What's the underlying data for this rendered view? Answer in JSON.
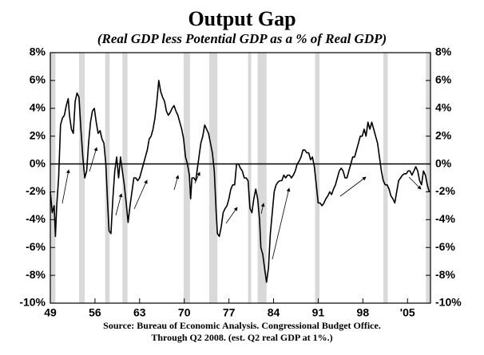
{
  "chart_data": {
    "type": "line",
    "title": "Output Gap",
    "subtitle": "(Real GDP less Potential GDP as a % of Real GDP)",
    "source": [
      "Source:  Bureau of Economic Analysis. Congressional Budget Office.",
      "Through  Q2 2008. (est. Q2 real GDP at 1%.)"
    ],
    "xlim": [
      1949,
      2008.6
    ],
    "xticks": [
      {
        "value": 1949,
        "label": "49"
      },
      {
        "value": 1956,
        "label": "56"
      },
      {
        "value": 1963,
        "label": "63"
      },
      {
        "value": 1970,
        "label": "70"
      },
      {
        "value": 1977,
        "label": "77"
      },
      {
        "value": 1984,
        "label": "84"
      },
      {
        "value": 1991,
        "label": "91"
      },
      {
        "value": 1998,
        "label": "98"
      },
      {
        "value": 2005,
        "label": "'05"
      }
    ],
    "ylim": [
      -10,
      8
    ],
    "yticks": [
      {
        "value": -10,
        "label": "-10%"
      },
      {
        "value": -8,
        "label": "-8%"
      },
      {
        "value": -6,
        "label": "-6%"
      },
      {
        "value": -4,
        "label": "-4%"
      },
      {
        "value": -2,
        "label": "-2%"
      },
      {
        "value": 0,
        "label": "0%"
      },
      {
        "value": 2,
        "label": "2%"
      },
      {
        "value": 4,
        "label": "4%"
      },
      {
        "value": 6,
        "label": "6%"
      },
      {
        "value": 8,
        "label": "8%"
      }
    ],
    "recession_color": "#d9d9d9",
    "recessions": [
      [
        1949,
        1949.8
      ],
      [
        1953.5,
        1954.4
      ],
      [
        1957.6,
        1958.3
      ],
      [
        1960.3,
        1961.1
      ],
      [
        1969.9,
        1970.9
      ],
      [
        1973.9,
        1975.2
      ],
      [
        1980.0,
        1980.5
      ],
      [
        1981.5,
        1982.9
      ],
      [
        1990.5,
        1991.2
      ],
      [
        2001.2,
        2001.9
      ],
      [
        2007.9,
        2008.6
      ]
    ],
    "series": [
      {
        "name": "Output Gap",
        "color": "#000000",
        "x": [
          1949.0,
          1949.3,
          1949.6,
          1949.8,
          1950.0,
          1950.3,
          1950.6,
          1950.9,
          1951.2,
          1951.5,
          1951.8,
          1952.0,
          1952.3,
          1952.6,
          1952.9,
          1953.2,
          1953.5,
          1953.8,
          1954.1,
          1954.4,
          1954.7,
          1955.0,
          1955.3,
          1955.6,
          1955.9,
          1956.2,
          1956.5,
          1956.8,
          1957.1,
          1957.4,
          1957.7,
          1958.0,
          1958.2,
          1958.5,
          1958.8,
          1959.1,
          1959.4,
          1959.7,
          1960.0,
          1960.3,
          1960.6,
          1960.9,
          1961.2,
          1961.5,
          1961.8,
          1962.1,
          1962.4,
          1962.7,
          1963.0,
          1963.3,
          1963.6,
          1963.9,
          1964.2,
          1964.5,
          1964.8,
          1965.1,
          1965.4,
          1965.7,
          1966.0,
          1966.3,
          1966.6,
          1966.9,
          1967.2,
          1967.5,
          1967.8,
          1968.1,
          1968.4,
          1968.7,
          1969.0,
          1969.3,
          1969.6,
          1969.9,
          1970.2,
          1970.5,
          1970.8,
          1971.0,
          1971.2,
          1971.5,
          1971.8,
          1972.0,
          1972.3,
          1972.6,
          1972.9,
          1973.2,
          1973.5,
          1973.8,
          1974.1,
          1974.4,
          1974.7,
          1975.0,
          1975.2,
          1975.5,
          1975.8,
          1976.1,
          1976.4,
          1976.7,
          1977.0,
          1977.3,
          1977.6,
          1977.9,
          1978.2,
          1978.5,
          1978.8,
          1979.1,
          1979.4,
          1979.7,
          1980.0,
          1980.3,
          1980.6,
          1980.9,
          1981.2,
          1981.5,
          1981.8,
          1982.0,
          1982.3,
          1982.6,
          1982.9,
          1983.2,
          1983.5,
          1983.8,
          1984.1,
          1984.4,
          1984.7,
          1985.0,
          1985.3,
          1985.6,
          1985.9,
          1986.2,
          1986.5,
          1986.8,
          1987.1,
          1987.4,
          1987.7,
          1988.0,
          1988.3,
          1988.6,
          1988.9,
          1989.2,
          1989.5,
          1989.8,
          1990.1,
          1990.4,
          1990.7,
          1991.0,
          1991.3,
          1991.6,
          1991.9,
          1992.2,
          1992.5,
          1992.8,
          1993.1,
          1993.4,
          1993.7,
          1994.0,
          1994.3,
          1994.6,
          1994.9,
          1995.2,
          1995.5,
          1995.8,
          1996.1,
          1996.4,
          1996.7,
          1997.0,
          1997.3,
          1997.6,
          1997.9,
          1998.2,
          1998.5,
          1998.8,
          1999.1,
          1999.4,
          1999.7,
          2000.0,
          2000.3,
          2000.6,
          2000.9,
          2001.2,
          2001.5,
          2001.8,
          2002.1,
          2002.4,
          2002.7,
          2003.0,
          2003.3,
          2003.6,
          2003.9,
          2004.2,
          2004.5,
          2004.8,
          2005.1,
          2005.4,
          2005.7,
          2006.0,
          2006.3,
          2006.6,
          2006.9,
          2007.2,
          2007.5,
          2007.8,
          2008.1,
          2008.4
        ],
        "values": [
          -2,
          -3.5,
          -3,
          -5.2,
          -3,
          -1,
          2.8,
          3.3,
          3.5,
          4.2,
          4.7,
          3.5,
          2.5,
          2.2,
          4.5,
          5.1,
          4.8,
          2.5,
          0.5,
          -1,
          -0.5,
          1.5,
          3,
          3.8,
          4,
          3,
          2.2,
          2.4,
          1.8,
          1.5,
          0,
          -3,
          -4.8,
          -5,
          -2.5,
          -0.5,
          0.5,
          -1,
          0.5,
          -0.5,
          -1.5,
          -2.8,
          -4.2,
          -3,
          -2,
          -1,
          -1,
          -1.2,
          -1,
          -0.5,
          0,
          0.5,
          1,
          1.8,
          2,
          2.5,
          3.3,
          4.5,
          6,
          5.2,
          4.8,
          4.5,
          3.8,
          3.5,
          3.7,
          4,
          4.2,
          3.8,
          3.5,
          3,
          2.5,
          1.8,
          0.5,
          0,
          -0.8,
          -2.5,
          -1,
          -1,
          -1.2,
          -0.5,
          0.5,
          1.5,
          2,
          2.8,
          2.5,
          2.2,
          1.5,
          0.8,
          -0.5,
          -3.5,
          -5,
          -5.2,
          -4.5,
          -3.5,
          -3.2,
          -3,
          -2.5,
          -1.8,
          -1.5,
          -1.5,
          0,
          0,
          -0.3,
          -0.5,
          -1,
          -1,
          -1.2,
          -3.2,
          -3.5,
          -2.5,
          -1.8,
          -2.5,
          -4,
          -6,
          -6.5,
          -7.5,
          -8.5,
          -7.5,
          -5,
          -3.5,
          -2,
          -1.5,
          -1.3,
          -1.2,
          -1.2,
          -0.8,
          -1,
          -0.8,
          -0.8,
          -1,
          -0.8,
          -0.5,
          0,
          0.2,
          0.5,
          1,
          1,
          0.8,
          0.8,
          0.3,
          0.5,
          -0.2,
          -1.5,
          -2.8,
          -2.8,
          -3,
          -2.8,
          -2.5,
          -2.3,
          -2,
          -2.2,
          -1.8,
          -1.5,
          -1,
          -0.5,
          -0.3,
          -0.5,
          -1,
          -1,
          -0.5,
          0,
          0.5,
          0.5,
          1,
          1.5,
          2,
          2,
          2.5,
          2,
          3,
          2.5,
          3,
          2.5,
          2,
          1.5,
          0.5,
          -0.5,
          -1.2,
          -1.5,
          -1.5,
          -1.8,
          -2.3,
          -2.5,
          -2.8,
          -2,
          -1.2,
          -1,
          -0.8,
          -0.7,
          -0.7,
          -0.5,
          -0.5,
          -0.8,
          -0.5,
          -0.2,
          -0.5,
          -1.2,
          -1.5,
          -0.5,
          -0.8,
          -1.5,
          -2
        ]
      }
    ]
  }
}
